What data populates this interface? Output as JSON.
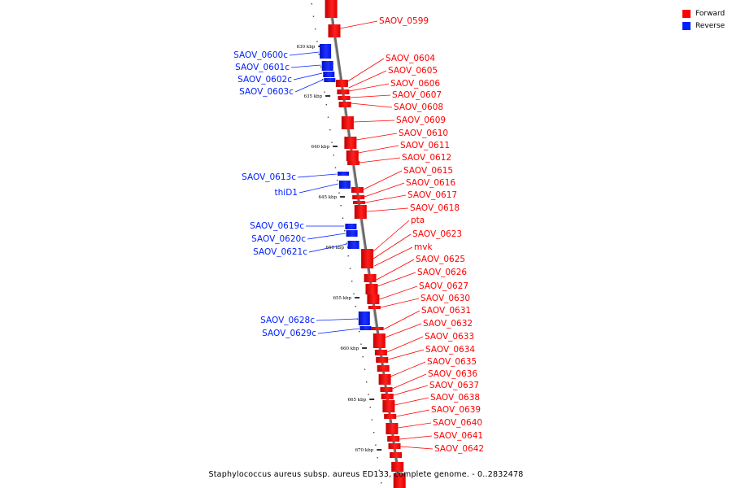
{
  "legend": {
    "forward": {
      "label": "Forward",
      "color": "#ff0000"
    },
    "reverse": {
      "label": "Reverse",
      "color": "#0020ff"
    }
  },
  "footer": "Staphylococcus aureus subsp. aureus ED133, complete genome. - 0..2832478",
  "ticks": [
    "630 kbp",
    "635 kbp",
    "640 kbp",
    "645 kbp",
    "650 kbp",
    "655 kbp",
    "660 kbp",
    "665 kbp",
    "670 kbp"
  ],
  "forward_genes": [
    "SAOV_0599",
    "SAOV_0604",
    "SAOV_0605",
    "SAOV_0606",
    "SAOV_0607",
    "SAOV_0608",
    "SAOV_0609",
    "SAOV_0610",
    "SAOV_0611",
    "SAOV_0612",
    "SAOV_0615",
    "SAOV_0616",
    "SAOV_0617",
    "SAOV_0618",
    "pta",
    "SAOV_0623",
    "mvk",
    "SAOV_0625",
    "SAOV_0626",
    "SAOV_0627",
    "SAOV_0630",
    "SAOV_0631",
    "SAOV_0632",
    "SAOV_0633",
    "SAOV_0634",
    "SAOV_0635",
    "SAOV_0636",
    "SAOV_0637",
    "SAOV_0638",
    "SAOV_0639",
    "SAOV_0640",
    "SAOV_0641",
    "SAOV_0642"
  ],
  "reverse_genes": [
    "SAOV_0600c",
    "SAOV_0601c",
    "SAOV_0602c",
    "SAOV_0603c",
    "SAOV_0613c",
    "thiD1",
    "SAOV_0619c",
    "SAOV_0620c",
    "SAOV_0621c",
    "SAOV_0628c",
    "SAOV_0629c"
  ]
}
